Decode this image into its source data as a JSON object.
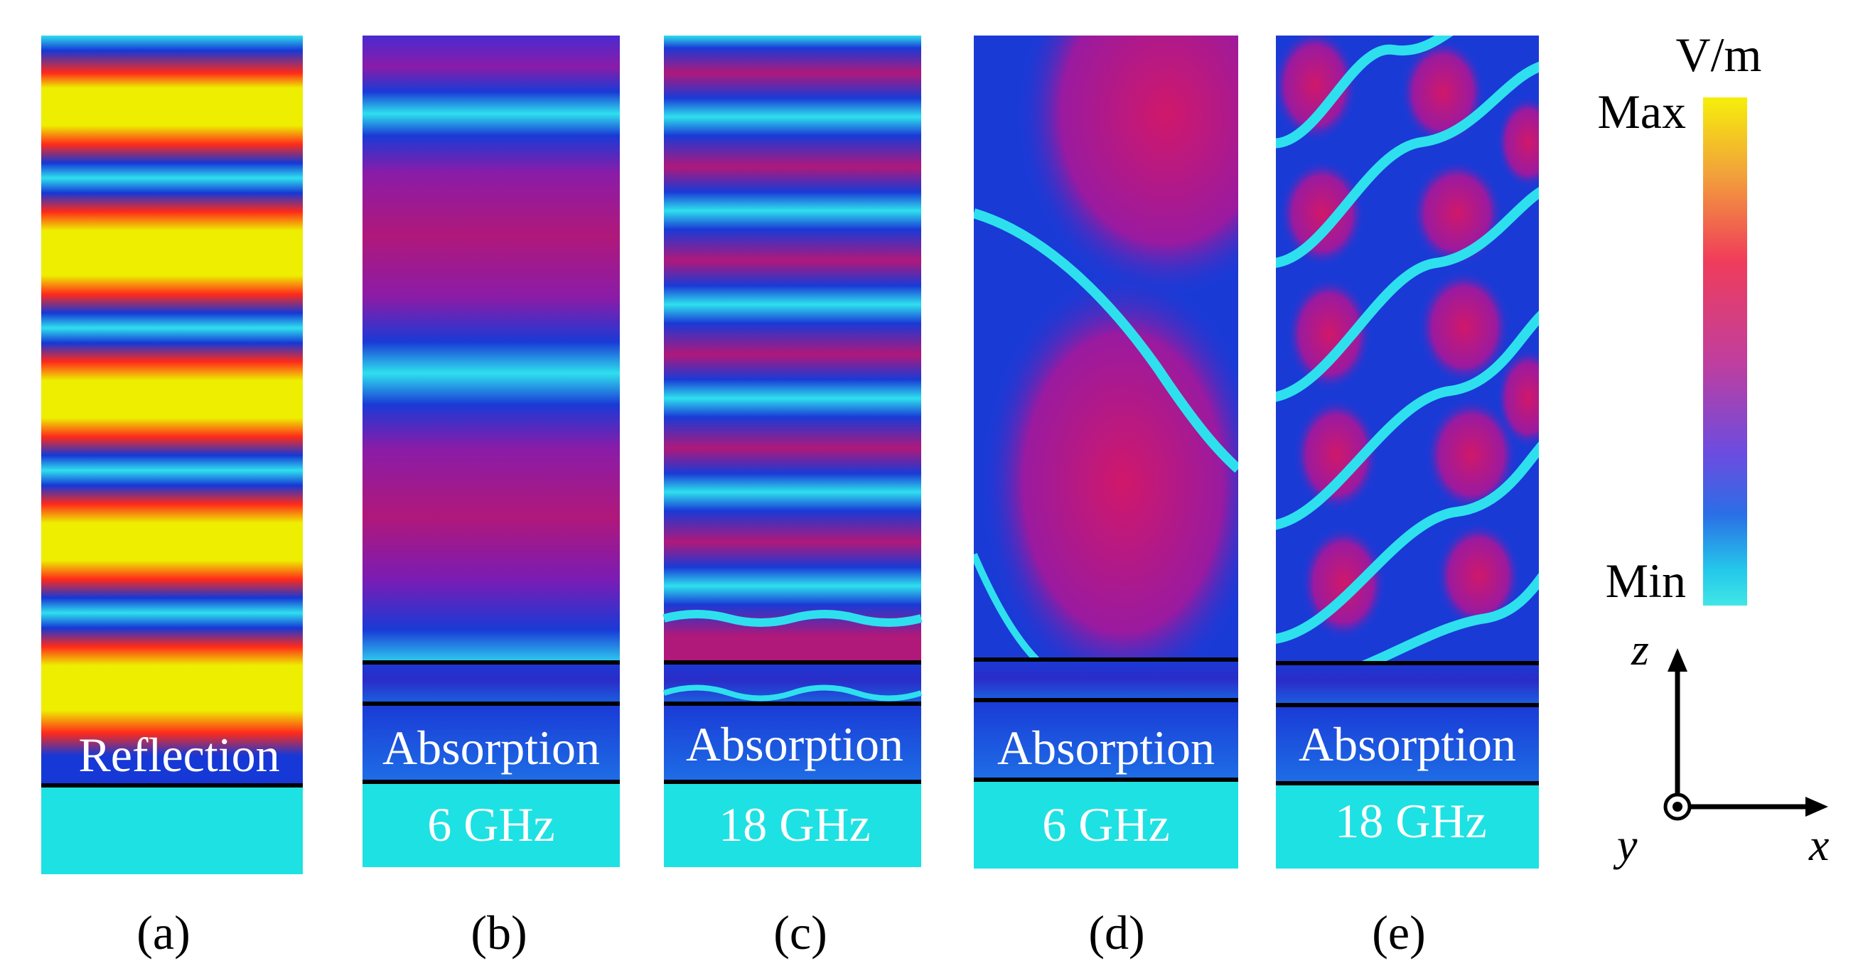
{
  "panels": [
    {
      "id": "a",
      "caption": "(a)",
      "label": "Reflection",
      "freq": ""
    },
    {
      "id": "b",
      "caption": "(b)",
      "label": "Absorption",
      "freq": "6 GHz"
    },
    {
      "id": "c",
      "caption": "(c)",
      "label": "Absorption",
      "freq": "18 GHz"
    },
    {
      "id": "d",
      "caption": "(d)",
      "label": "Absorption",
      "freq": "6 GHz"
    },
    {
      "id": "e",
      "caption": "(e)",
      "label": "Absorption",
      "freq": "18 GHz"
    }
  ],
  "colorbar": {
    "unit": "V/m",
    "max_label": "Max",
    "min_label": "Min",
    "colors": [
      "#f5ef0a",
      "#f2a23a",
      "#f03d5a",
      "#c03e9e",
      "#6c4ce0",
      "#2b6ee6",
      "#24c8ea",
      "#40e6e6"
    ]
  },
  "axes": {
    "z": "z",
    "x": "x",
    "y": "y"
  },
  "palette": {
    "substrate": "#1ee1e3",
    "yellow": "#eeee00",
    "red": "#ff2a1a",
    "magenta": "#b0187a",
    "blue": "#1638d6",
    "cyan": "#2ee0ee",
    "line": "#000000"
  }
}
